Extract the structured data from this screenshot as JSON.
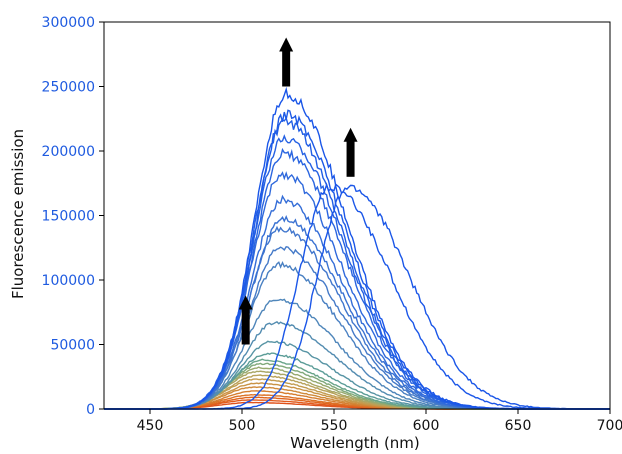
{
  "chart_data": {
    "type": "line",
    "title": "",
    "xlabel": "Wavelength (nm)",
    "ylabel": "Fluorescence emission",
    "xlim": [
      425,
      700
    ],
    "ylim": [
      0,
      300000
    ],
    "xticks": [
      450,
      500,
      550,
      600,
      650,
      700
    ],
    "yticks": [
      0,
      50000,
      100000,
      150000,
      200000,
      250000,
      300000
    ],
    "ytick_color": "#1f5be0",
    "grid": false,
    "legend": "none",
    "series_generation_note": "",
    "series": [
      {
        "peak": 5000,
        "center": 505,
        "color": "#e0501a"
      },
      {
        "peak": 7000,
        "center": 505,
        "color": "#e25a1c"
      },
      {
        "peak": 9000,
        "center": 506,
        "color": "#e0651e"
      },
      {
        "peak": 11000,
        "center": 506,
        "color": "#dc7226"
      },
      {
        "peak": 14000,
        "center": 507,
        "color": "#d57e30"
      },
      {
        "peak": 17000,
        "center": 507,
        "color": "#cf8a3a"
      },
      {
        "peak": 20000,
        "center": 508,
        "color": "#c99446"
      },
      {
        "peak": 23000,
        "center": 508,
        "color": "#c29c50"
      },
      {
        "peak": 26000,
        "center": 509,
        "color": "#b8a25a"
      },
      {
        "peak": 29000,
        "center": 509,
        "color": "#a9a664"
      },
      {
        "peak": 32000,
        "center": 510,
        "color": "#97a96e"
      },
      {
        "peak": 35000,
        "center": 511,
        "color": "#80a97a"
      },
      {
        "peak": 38000,
        "center": 512,
        "color": "#6aa58a"
      },
      {
        "peak": 43000,
        "center": 514,
        "color": "#5c9d98"
      },
      {
        "peak": 52000,
        "center": 516,
        "color": "#5794a4"
      },
      {
        "peak": 67000,
        "center": 518,
        "color": "#538cb0"
      },
      {
        "peak": 85000,
        "center": 519,
        "color": "#4f86ba"
      },
      {
        "peak": 112000,
        "center": 520,
        "color": "#4a80c2"
      },
      {
        "peak": 125000,
        "center": 521,
        "color": "#457ac8"
      },
      {
        "peak": 140000,
        "center": 521,
        "color": "#4076cd"
      },
      {
        "peak": 148000,
        "center": 522,
        "color": "#3a72d2"
      },
      {
        "peak": 162000,
        "center": 522,
        "color": "#346dd7"
      },
      {
        "peak": 182000,
        "center": 522,
        "color": "#2f69dc"
      },
      {
        "peak": 198000,
        "center": 523,
        "color": "#2a65e0"
      },
      {
        "peak": 210000,
        "center": 523,
        "color": "#2561e3"
      },
      {
        "peak": 222000,
        "center": 523,
        "color": "#215ee5"
      },
      {
        "peak": 228000,
        "center": 524,
        "color": "#1d5ae6"
      },
      {
        "peak": 244000,
        "center": 524,
        "color": "#1a56e8"
      },
      {
        "peak": 172000,
        "center": 548,
        "color": "#1a56e8"
      },
      {
        "peak": 172000,
        "center": 558,
        "color": "#1a56e8"
      }
    ],
    "arrows": [
      {
        "x": 524,
        "y_from": 250000,
        "y_to": 288000
      },
      {
        "x": 559,
        "y_from": 180000,
        "y_to": 218000
      },
      {
        "x": 502,
        "y_from": 50000,
        "y_to": 88000
      }
    ]
  }
}
